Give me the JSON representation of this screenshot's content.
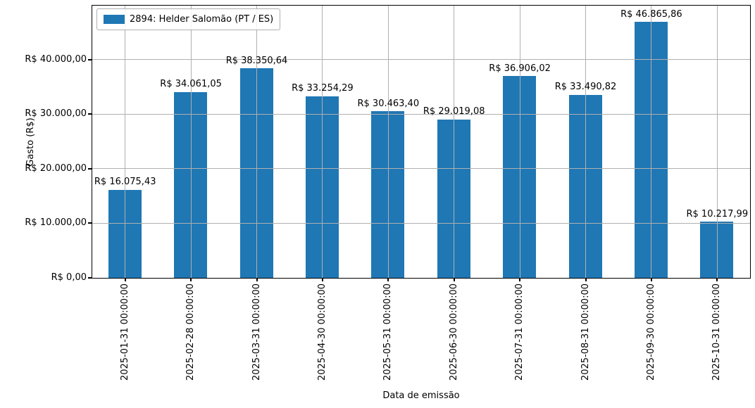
{
  "chart_data": {
    "type": "bar",
    "title": "",
    "xlabel": "Data de emissão",
    "ylabel": "Gasto (R$)",
    "legend_position": "upper left",
    "series": [
      {
        "name": "2894: Helder Salomão (PT / ES)",
        "color": "#1f77b4",
        "values": [
          16075.43,
          34061.05,
          38350.64,
          33254.29,
          30463.4,
          29019.08,
          36906.02,
          33490.82,
          46865.86,
          10217.99
        ],
        "value_labels": [
          "R$ 16.075,43",
          "R$ 34.061,05",
          "R$ 38.350,64",
          "R$ 33.254,29",
          "R$ 30.463,40",
          "R$ 29.019,08",
          "R$ 36.906,02",
          "R$ 33.490,82",
          "R$ 46.865,86",
          "R$ 10.217,99"
        ]
      }
    ],
    "categories": [
      "2025-01-31 00:00:00",
      "2025-02-28 00:00:00",
      "2025-03-31 00:00:00",
      "2025-04-30 00:00:00",
      "2025-05-31 00:00:00",
      "2025-06-30 00:00:00",
      "2025-07-31 00:00:00",
      "2025-08-31 00:00:00",
      "2025-09-30 00:00:00",
      "2025-10-31 00:00:00"
    ],
    "yticks": [
      0,
      10000,
      20000,
      30000,
      40000
    ],
    "ytick_labels": [
      "R$ 0,00",
      "R$ 10.000,00",
      "R$ 20.000,00",
      "R$ 30.000,00",
      "R$ 40.000,00"
    ],
    "ylim": [
      0,
      49935
    ],
    "grid": true,
    "grid_color": "#b0b0b0",
    "spine_color": "#000000",
    "background": "#ffffff"
  }
}
